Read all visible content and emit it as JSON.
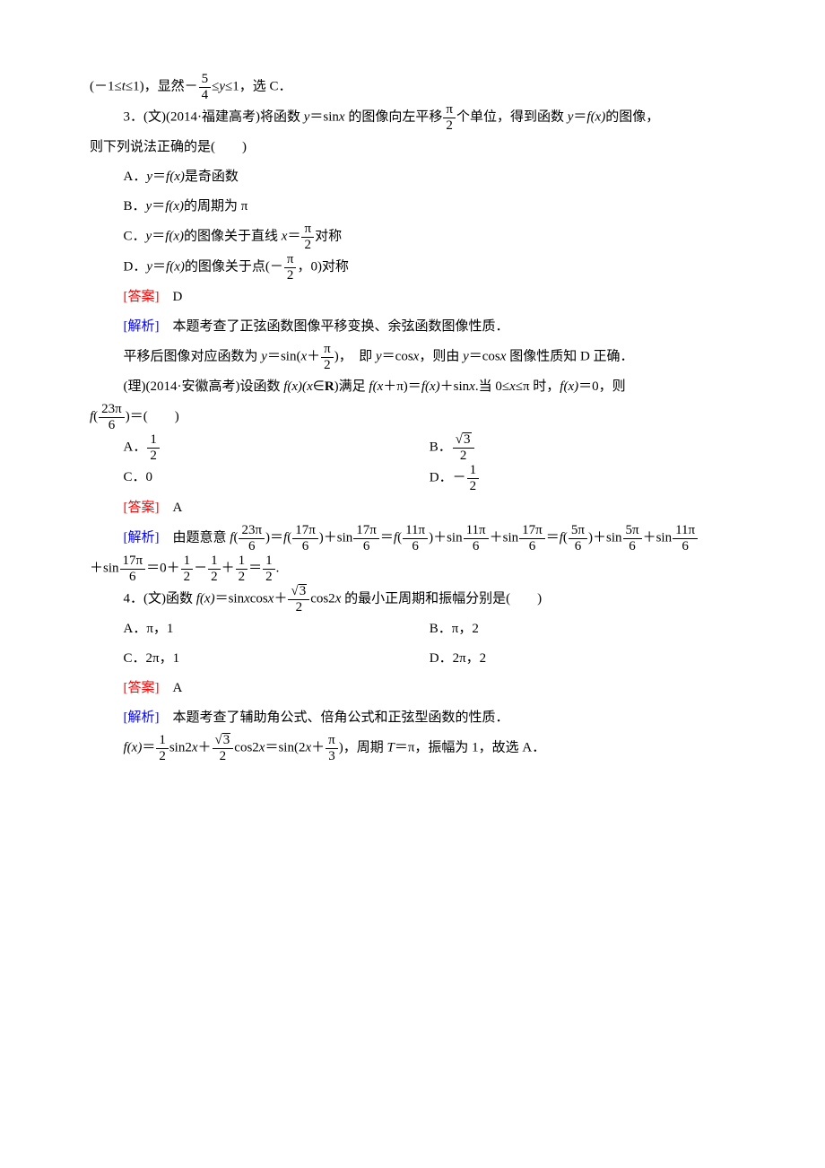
{
  "intro_line": {
    "prefix": "(－1≤",
    "t": "t",
    "mid1": "≤1)，显然－",
    "frac1_num": "5",
    "frac1_den": "4",
    "mid2": "≤",
    "y": "y",
    "end": "≤1，选 C．"
  },
  "q3_wen": {
    "label": "3．(文)(2014·福建高考)将函数 ",
    "fn": "y",
    "eq": "＝sin",
    "x": "x",
    "mid": " 的图像向左平移",
    "frac_num": "π",
    "frac_den": "2",
    "after": "个单位，得到函数 ",
    "y2": "y",
    "eq2": "＝",
    "f": "f",
    "x2": "(x)",
    "tail": "的图像，",
    "line2": "则下列说法正确的是(　　)"
  },
  "q3_choices": {
    "A": {
      "label": "A．",
      "y": "y",
      "eq": "＝",
      "f": "f",
      "x": "(x)",
      "text": "是奇函数"
    },
    "B": {
      "label": "B．",
      "y": "y",
      "eq": "＝",
      "f": "f",
      "x": "(x)",
      "text": "的周期为 π"
    },
    "C": {
      "label": "C．",
      "y": "y",
      "eq": "＝",
      "f": "f",
      "x": "(x)",
      "text1": "的图像关于直线 ",
      "xvar": "x",
      "eq2": "＝",
      "num": "π",
      "den": "2",
      "text2": "对称"
    },
    "D": {
      "label": "D．",
      "y": "y",
      "eq": "＝",
      "f": "f",
      "x": "(x)",
      "text1": "的图像关于点(－",
      "num": "π",
      "den": "2",
      "text2": "，0)对称"
    }
  },
  "q3_answer": {
    "label": "[答案]",
    "value": "　D"
  },
  "q3_analysis": {
    "label": "[解析]",
    "line1": "　本题考查了正弦函数图像平移变换、余弦函数图像性质．",
    "line2_a": "平移后图像对应函数为 ",
    "y": "y",
    "eq": "＝sin(",
    "x": "x",
    "plus": "＋",
    "num": "π",
    "den": "2",
    "close": ")，",
    "mid": "　即 ",
    "y2": "y",
    "eq2": "＝cos",
    "x2": "x",
    "mid2": "，则由 ",
    "y3": "y",
    "eq3": "＝cos",
    "x3": "x",
    "tail": " 图像性质知 D 正确．"
  },
  "q3_li": {
    "label": "(理)(2014·安徽高考)设函数 ",
    "f": "f",
    "x": "(x)(",
    "xvar": "x",
    "in": "∈",
    "R": "R",
    "close": ")满足 ",
    "f2": "f",
    "arg2": "(x",
    "plus": "＋π)＝",
    "f3": "f",
    "arg3": "(x)",
    "plus2": "＋sin",
    "x2": "x",
    "when": ".当 0≤",
    "x3": "x",
    "le": "≤π 时，",
    "f4": "f",
    "arg4": "(x)",
    "eq0": "＝0，则",
    "line2_f": "f",
    "line2_open": "(",
    "line2_num": "23π",
    "line2_den": "6",
    "line2_close": ")＝(　　)"
  },
  "q3_li_choices": {
    "A": {
      "label": "A．",
      "num": "1",
      "den": "2"
    },
    "B": {
      "label": "B．",
      "sqrt": "3",
      "den": "2"
    },
    "C": {
      "label": "C．0"
    },
    "D": {
      "label": "D．－",
      "num": "1",
      "den": "2"
    }
  },
  "q3_li_answer": {
    "label": "[答案]",
    "value": "　A"
  },
  "q3_li_analysis": {
    "label": "[解析]",
    "prefix": "　由题意意 ",
    "f": "f",
    "terms": [
      {
        "type": "f_frac",
        "num": "23π",
        "den": "6",
        "suffix": "＝"
      },
      {
        "type": "f_frac_plus_sin",
        "fnum": "17π",
        "fden": "6",
        "snum": "17π",
        "sden": "6",
        "suffix": "＝"
      },
      {
        "type": "f_frac_plus_sin2",
        "fnum": "11π",
        "fden": "6",
        "s1num": "11π",
        "s1den": "6",
        "s2num": "17π",
        "s2den": "6",
        "suffix": "＝"
      },
      {
        "type": "f_frac_plus_sin3",
        "fnum": "5π",
        "fden": "6",
        "s1num": "5π",
        "s1den": "6",
        "s2num": "11π",
        "s2den": "6"
      }
    ],
    "line2_prefix": "＋sin",
    "line2_num": "17π",
    "line2_den": "6",
    "line2_eq": "＝0＋",
    "f1n": "1",
    "f1d": "2",
    "m1": "－",
    "f2n": "1",
    "f2d": "2",
    "m2": "＋",
    "f3n": "1",
    "f3d": "2",
    "eq2": "＝",
    "f4n": "1",
    "f4d": "2",
    "period": "."
  },
  "q4": {
    "label": "4．(文)函数 ",
    "f": "f",
    "x": "(x)",
    "eq": "＝sin",
    "x1": "x",
    "cos": "cos",
    "x2": "x",
    "plus": "＋",
    "sqrt": "3",
    "den": "2",
    "cos2": "cos2",
    "x3": "x",
    "tail": " 的最小正周期和振幅分别是(　　)"
  },
  "q4_choices": {
    "A": "A．π，1",
    "B": "B．π，2",
    "C": "C．2π，1",
    "D": "D．2π，2"
  },
  "q4_answer": {
    "label": "[答案]",
    "value": "　A"
  },
  "q4_analysis": {
    "label": "[解析]",
    "line1": "　本题考查了辅助角公式、倍角公式和正弦型函数的性质．",
    "line2_f": "f",
    "line2_x": "(x)",
    "line2_eq": "＝",
    "t1n": "1",
    "t1d": "2",
    "sin2x": "sin2",
    "x1": "x",
    "plus": "＋",
    "sqrt": "3",
    "t2d": "2",
    "cos2x": "cos2",
    "x2": "x",
    "eq2": "＝sin(2",
    "x3": "x",
    "plus2": "＋",
    "pn": "π",
    "pd": "3",
    "close": ")，",
    "period_label": "周期 ",
    "T": "T",
    "Teq": "＝π，振幅为 1，故选 A．"
  }
}
